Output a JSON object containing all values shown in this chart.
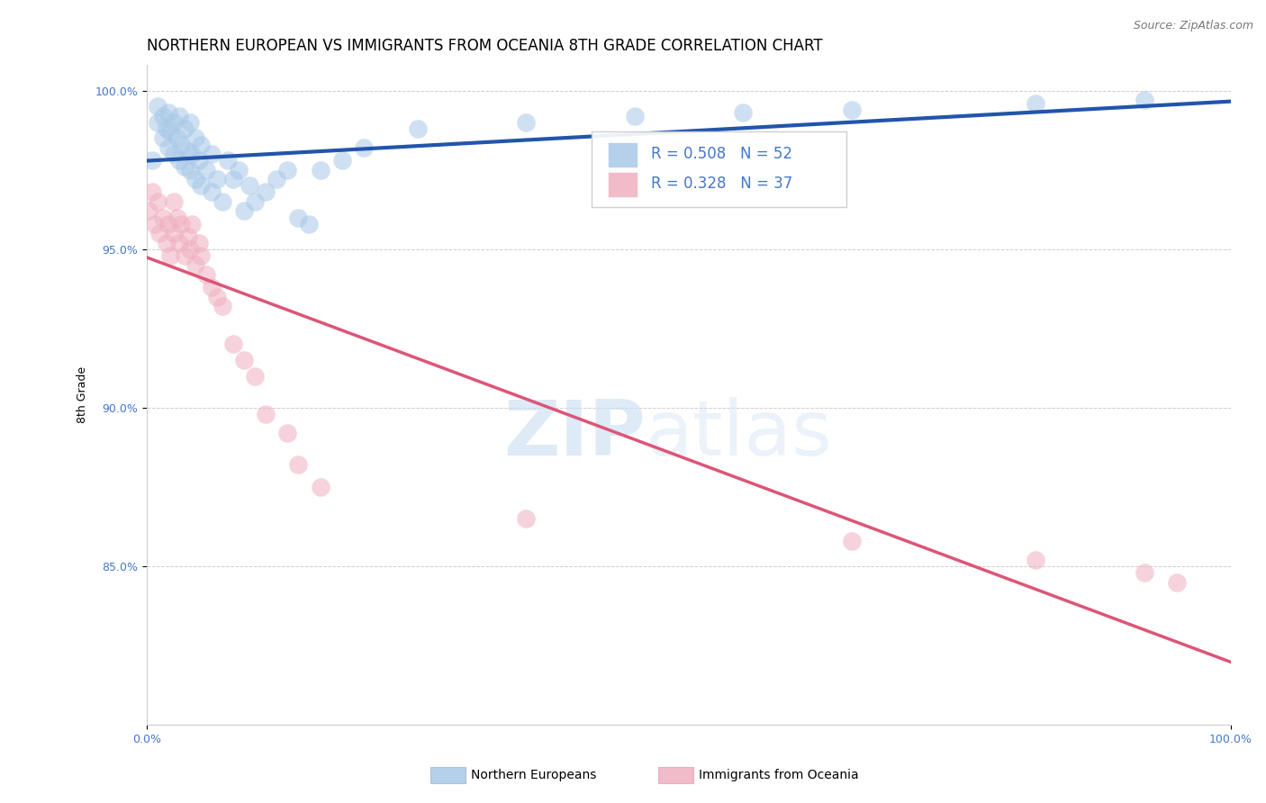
{
  "title": "NORTHERN EUROPEAN VS IMMIGRANTS FROM OCEANIA 8TH GRADE CORRELATION CHART",
  "source": "Source: ZipAtlas.com",
  "ylabel": "8th Grade",
  "xlim": [
    0.0,
    1.0
  ],
  "ylim": [
    0.8,
    1.008
  ],
  "yticks": [
    0.85,
    0.9,
    0.95,
    1.0
  ],
  "ytick_labels": [
    "85.0%",
    "90.0%",
    "95.0%",
    "100.0%"
  ],
  "blue_R": 0.508,
  "blue_N": 52,
  "pink_R": 0.328,
  "pink_N": 37,
  "legend_blue_label": "Northern Europeans",
  "legend_pink_label": "Immigrants from Oceania",
  "blue_color": "#A8C8E8",
  "pink_color": "#F0B0C0",
  "blue_line_color": "#2255AA",
  "pink_line_color": "#DD5577",
  "blue_scatter_x": [
    0.005,
    0.01,
    0.01,
    0.015,
    0.015,
    0.018,
    0.02,
    0.02,
    0.022,
    0.025,
    0.025,
    0.028,
    0.03,
    0.03,
    0.032,
    0.035,
    0.035,
    0.038,
    0.04,
    0.04,
    0.042,
    0.045,
    0.045,
    0.048,
    0.05,
    0.05,
    0.055,
    0.06,
    0.06,
    0.065,
    0.07,
    0.075,
    0.08,
    0.085,
    0.09,
    0.095,
    0.1,
    0.11,
    0.12,
    0.13,
    0.14,
    0.15,
    0.16,
    0.18,
    0.2,
    0.25,
    0.35,
    0.45,
    0.55,
    0.65,
    0.82,
    0.92
  ],
  "blue_scatter_y": [
    0.978,
    0.99,
    0.995,
    0.985,
    0.992,
    0.988,
    0.982,
    0.993,
    0.987,
    0.98,
    0.99,
    0.985,
    0.978,
    0.992,
    0.983,
    0.976,
    0.988,
    0.981,
    0.975,
    0.99,
    0.98,
    0.972,
    0.985,
    0.978,
    0.97,
    0.983,
    0.975,
    0.968,
    0.98,
    0.972,
    0.965,
    0.978,
    0.972,
    0.975,
    0.962,
    0.97,
    0.965,
    0.968,
    0.972,
    0.975,
    0.96,
    0.958,
    0.975,
    0.978,
    0.982,
    0.988,
    0.99,
    0.992,
    0.993,
    0.994,
    0.996,
    0.997
  ],
  "pink_scatter_x": [
    0.002,
    0.005,
    0.008,
    0.01,
    0.012,
    0.015,
    0.018,
    0.02,
    0.022,
    0.025,
    0.025,
    0.028,
    0.03,
    0.032,
    0.035,
    0.038,
    0.04,
    0.042,
    0.045,
    0.048,
    0.05,
    0.055,
    0.06,
    0.065,
    0.07,
    0.08,
    0.09,
    0.1,
    0.11,
    0.13,
    0.14,
    0.16,
    0.35,
    0.65,
    0.82,
    0.92,
    0.95
  ],
  "pink_scatter_y": [
    0.962,
    0.968,
    0.958,
    0.965,
    0.955,
    0.96,
    0.952,
    0.958,
    0.948,
    0.965,
    0.955,
    0.96,
    0.952,
    0.958,
    0.948,
    0.954,
    0.95,
    0.958,
    0.945,
    0.952,
    0.948,
    0.942,
    0.938,
    0.935,
    0.932,
    0.92,
    0.915,
    0.91,
    0.898,
    0.892,
    0.882,
    0.875,
    0.865,
    0.858,
    0.852,
    0.848,
    0.845
  ],
  "watermark_zip": "ZIP",
  "watermark_atlas": "atlas",
  "background_color": "#FFFFFF",
  "grid_color": "#BBBBBB",
  "title_fontsize": 12,
  "axis_label_fontsize": 9,
  "tick_fontsize": 9,
  "legend_fontsize": 12
}
